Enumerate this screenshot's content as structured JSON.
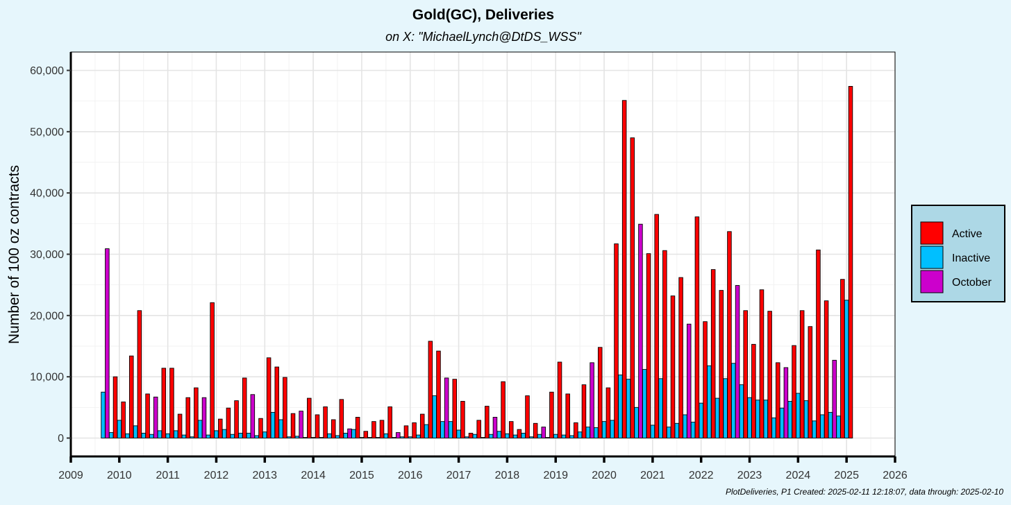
{
  "chart_data": {
    "type": "bar",
    "title": "Gold(GC), Deliveries",
    "subtitle": "on X:   \"MichaelLynch@DtDS_WSS\"",
    "ylabel": "Number of 100 oz contracts",
    "xlabel": "",
    "caption": "PlotDeliveries, P1 Created: 2025-02-11 12:18:07, data through: 2025-02-10",
    "x_axis": {
      "type": "date",
      "range": [
        "2009-01-01",
        "2026-01-01"
      ],
      "ticks": [
        "2009",
        "2010",
        "2011",
        "2012",
        "2013",
        "2014",
        "2015",
        "2016",
        "2017",
        "2018",
        "2019",
        "2020",
        "2021",
        "2022",
        "2023",
        "2024",
        "2025",
        "2026"
      ]
    },
    "y_axis": {
      "range": [
        -3000,
        63000
      ],
      "ticks": [
        0,
        10000,
        20000,
        30000,
        40000,
        50000,
        60000
      ],
      "tick_labels": [
        "0",
        "10,000",
        "20,000",
        "30,000",
        "40,000",
        "50,000",
        "60,000"
      ]
    },
    "grid": true,
    "legend": {
      "position": "right",
      "items": [
        {
          "name": "Active",
          "color": "#ff0000"
        },
        {
          "name": "Inactive",
          "color": "#00bfff"
        },
        {
          "name": "October",
          "color": "#cc00cc"
        }
      ]
    },
    "series": [
      {
        "name": "Active",
        "color": "#ff0000",
        "points": [
          [
            "2009-12-01",
            10000
          ],
          [
            "2010-02-01",
            5900
          ],
          [
            "2010-04-01",
            13400
          ],
          [
            "2010-06-01",
            20800
          ],
          [
            "2010-08-01",
            7200
          ],
          [
            "2010-12-01",
            11400
          ],
          [
            "2011-02-01",
            11400
          ],
          [
            "2011-04-01",
            3900
          ],
          [
            "2011-06-01",
            6600
          ],
          [
            "2011-08-01",
            8200
          ],
          [
            "2011-12-01",
            22100
          ],
          [
            "2012-02-01",
            3100
          ],
          [
            "2012-04-01",
            4900
          ],
          [
            "2012-06-01",
            6100
          ],
          [
            "2012-08-01",
            9800
          ],
          [
            "2012-12-01",
            3200
          ],
          [
            "2013-02-01",
            13100
          ],
          [
            "2013-04-01",
            11600
          ],
          [
            "2013-06-01",
            9900
          ],
          [
            "2013-08-01",
            4000
          ],
          [
            "2013-12-01",
            6500
          ],
          [
            "2014-02-01",
            3800
          ],
          [
            "2014-04-01",
            5100
          ],
          [
            "2014-06-01",
            3000
          ],
          [
            "2014-08-01",
            6300
          ],
          [
            "2014-12-01",
            3400
          ],
          [
            "2015-02-01",
            1100
          ],
          [
            "2015-04-01",
            2700
          ],
          [
            "2015-06-01",
            2900
          ],
          [
            "2015-08-01",
            5100
          ],
          [
            "2015-12-01",
            2000
          ],
          [
            "2016-02-01",
            2500
          ],
          [
            "2016-04-01",
            3900
          ],
          [
            "2016-06-01",
            15800
          ],
          [
            "2016-08-01",
            14200
          ],
          [
            "2016-12-01",
            9600
          ],
          [
            "2017-02-01",
            6000
          ],
          [
            "2017-04-01",
            800
          ],
          [
            "2017-06-01",
            2900
          ],
          [
            "2017-08-01",
            5200
          ],
          [
            "2017-12-01",
            9200
          ],
          [
            "2018-02-01",
            2700
          ],
          [
            "2018-04-01",
            1400
          ],
          [
            "2018-06-01",
            6900
          ],
          [
            "2018-08-01",
            2400
          ],
          [
            "2018-12-01",
            7500
          ],
          [
            "2019-02-01",
            12400
          ],
          [
            "2019-04-01",
            7200
          ],
          [
            "2019-06-01",
            2500
          ],
          [
            "2019-08-01",
            8700
          ],
          [
            "2019-12-01",
            14800
          ],
          [
            "2020-02-01",
            8200
          ],
          [
            "2020-04-01",
            31700
          ],
          [
            "2020-06-01",
            55100
          ],
          [
            "2020-08-01",
            49000
          ],
          [
            "2020-12-01",
            30100
          ],
          [
            "2021-02-01",
            36500
          ],
          [
            "2021-04-01",
            30600
          ],
          [
            "2021-06-01",
            23200
          ],
          [
            "2021-08-01",
            26200
          ],
          [
            "2021-12-01",
            36100
          ],
          [
            "2022-02-01",
            19000
          ],
          [
            "2022-04-01",
            27500
          ],
          [
            "2022-06-01",
            24100
          ],
          [
            "2022-08-01",
            33700
          ],
          [
            "2022-12-01",
            20800
          ],
          [
            "2023-02-01",
            15300
          ],
          [
            "2023-04-01",
            24200
          ],
          [
            "2023-06-01",
            20700
          ],
          [
            "2023-08-01",
            12300
          ],
          [
            "2023-12-01",
            15100
          ],
          [
            "2024-02-01",
            20800
          ],
          [
            "2024-04-01",
            18200
          ],
          [
            "2024-06-01",
            30700
          ],
          [
            "2024-08-01",
            22400
          ],
          [
            "2024-12-01",
            25900
          ],
          [
            "2025-02-01",
            57400
          ]
        ]
      },
      {
        "name": "Inactive",
        "color": "#00bfff",
        "points": [
          [
            "2009-09-01",
            7500
          ],
          [
            "2009-11-01",
            900
          ],
          [
            "2010-01-01",
            2900
          ],
          [
            "2010-03-01",
            700
          ],
          [
            "2010-05-01",
            2000
          ],
          [
            "2010-07-01",
            800
          ],
          [
            "2010-09-01",
            600
          ],
          [
            "2010-11-01",
            1200
          ],
          [
            "2011-01-01",
            700
          ],
          [
            "2011-03-01",
            1200
          ],
          [
            "2011-05-01",
            500
          ],
          [
            "2011-07-01",
            200
          ],
          [
            "2011-09-01",
            2900
          ],
          [
            "2011-11-01",
            500
          ],
          [
            "2012-01-01",
            1200
          ],
          [
            "2012-03-01",
            1400
          ],
          [
            "2012-05-01",
            600
          ],
          [
            "2012-07-01",
            800
          ],
          [
            "2012-09-01",
            800
          ],
          [
            "2012-11-01",
            400
          ],
          [
            "2013-01-01",
            1000
          ],
          [
            "2013-03-01",
            4200
          ],
          [
            "2013-05-01",
            3000
          ],
          [
            "2013-07-01",
            200
          ],
          [
            "2013-09-01",
            300
          ],
          [
            "2013-11-01",
            100
          ],
          [
            "2014-01-01",
            100
          ],
          [
            "2014-03-01",
            100
          ],
          [
            "2014-05-01",
            700
          ],
          [
            "2014-07-01",
            400
          ],
          [
            "2014-09-01",
            800
          ],
          [
            "2014-11-01",
            1400
          ],
          [
            "2015-01-01",
            100
          ],
          [
            "2015-03-01",
            100
          ],
          [
            "2015-05-01",
            100
          ],
          [
            "2015-07-01",
            700
          ],
          [
            "2015-09-01",
            100
          ],
          [
            "2015-11-01",
            200
          ],
          [
            "2016-01-01",
            200
          ],
          [
            "2016-03-01",
            500
          ],
          [
            "2016-05-01",
            2200
          ],
          [
            "2016-07-01",
            6900
          ],
          [
            "2016-09-01",
            2700
          ],
          [
            "2016-11-01",
            2700
          ],
          [
            "2017-01-01",
            1300
          ],
          [
            "2017-03-01",
            200
          ],
          [
            "2017-05-01",
            600
          ],
          [
            "2017-07-01",
            100
          ],
          [
            "2017-09-01",
            600
          ],
          [
            "2017-11-01",
            1100
          ],
          [
            "2018-01-01",
            700
          ],
          [
            "2018-03-01",
            500
          ],
          [
            "2018-05-01",
            800
          ],
          [
            "2018-07-01",
            200
          ],
          [
            "2018-09-01",
            600
          ],
          [
            "2018-11-01",
            100
          ],
          [
            "2019-01-01",
            600
          ],
          [
            "2019-03-01",
            500
          ],
          [
            "2019-05-01",
            400
          ],
          [
            "2019-07-01",
            1000
          ],
          [
            "2019-09-01",
            1800
          ],
          [
            "2019-11-01",
            1700
          ],
          [
            "2020-01-01",
            2700
          ],
          [
            "2020-03-01",
            2900
          ],
          [
            "2020-05-01",
            10300
          ],
          [
            "2020-07-01",
            9600
          ],
          [
            "2020-09-01",
            5000
          ],
          [
            "2020-11-01",
            11200
          ],
          [
            "2021-01-01",
            2100
          ],
          [
            "2021-03-01",
            9700
          ],
          [
            "2021-05-01",
            1800
          ],
          [
            "2021-07-01",
            2400
          ],
          [
            "2021-09-01",
            3800
          ],
          [
            "2021-11-01",
            2600
          ],
          [
            "2022-01-01",
            5700
          ],
          [
            "2022-03-01",
            11800
          ],
          [
            "2022-05-01",
            6500
          ],
          [
            "2022-07-01",
            9700
          ],
          [
            "2022-09-01",
            12200
          ],
          [
            "2022-11-01",
            8700
          ],
          [
            "2023-01-01",
            6600
          ],
          [
            "2023-03-01",
            6200
          ],
          [
            "2023-05-01",
            6200
          ],
          [
            "2023-07-01",
            3300
          ],
          [
            "2023-09-01",
            4900
          ],
          [
            "2023-11-01",
            6000
          ],
          [
            "2024-01-01",
            7300
          ],
          [
            "2024-03-01",
            6100
          ],
          [
            "2024-05-01",
            2800
          ],
          [
            "2024-07-01",
            3800
          ],
          [
            "2024-09-01",
            4200
          ],
          [
            "2024-11-01",
            3600
          ],
          [
            "2025-01-01",
            22500
          ]
        ]
      },
      {
        "name": "October",
        "color": "#cc00cc",
        "points": [
          [
            "2009-10-01",
            30900
          ],
          [
            "2010-10-01",
            6700
          ],
          [
            "2011-10-01",
            6600
          ],
          [
            "2012-10-01",
            7100
          ],
          [
            "2013-10-01",
            4400
          ],
          [
            "2014-10-01",
            1500
          ],
          [
            "2015-10-01",
            900
          ],
          [
            "2016-10-01",
            9800
          ],
          [
            "2017-10-01",
            3400
          ],
          [
            "2018-10-01",
            1800
          ],
          [
            "2019-10-01",
            12300
          ],
          [
            "2020-10-01",
            34900
          ],
          [
            "2021-10-01",
            18600
          ],
          [
            "2022-10-01",
            24900
          ],
          [
            "2023-10-01",
            11500
          ],
          [
            "2024-10-01",
            12700
          ]
        ]
      }
    ]
  }
}
